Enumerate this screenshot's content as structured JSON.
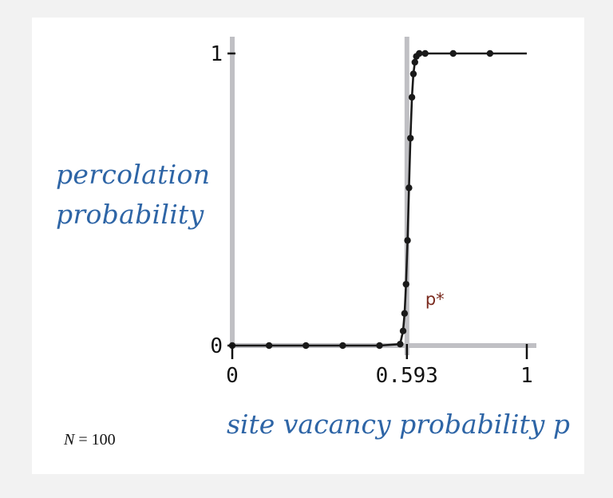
{
  "chart_data": {
    "type": "line",
    "xlabel": "site vacancy probability p",
    "ylabel": [
      "percolation",
      "probability"
    ],
    "annotation": "N = 100",
    "annotation_parts": {
      "var": "N",
      "rest": " = 100"
    },
    "threshold": {
      "x": 0.593,
      "label": "p*",
      "tick_label": "0.593"
    },
    "xlim": [
      0,
      1
    ],
    "ylim": [
      0,
      1
    ],
    "x_ticks": [
      "0",
      "0.593",
      "1"
    ],
    "y_ticks": [
      "0",
      "1"
    ],
    "grid": false,
    "series": [
      {
        "x": [
          0,
          0.125,
          0.25,
          0.375,
          0.5,
          0.57,
          0.58,
          0.585,
          0.59,
          0.595,
          0.6,
          0.605,
          0.61,
          0.615,
          0.62,
          0.625,
          0.635,
          0.655,
          0.75,
          0.875
        ],
        "y": [
          0,
          0,
          0,
          0,
          0,
          0.005,
          0.05,
          0.11,
          0.21,
          0.36,
          0.54,
          0.71,
          0.85,
          0.93,
          0.97,
          0.99,
          1,
          1,
          1,
          1
        ]
      }
    ]
  },
  "colors": {
    "axis": "#c0c0c4",
    "curve": "#1a1a1a",
    "label_blue": "#2e65a6",
    "pstar": "#7a2a1e"
  }
}
